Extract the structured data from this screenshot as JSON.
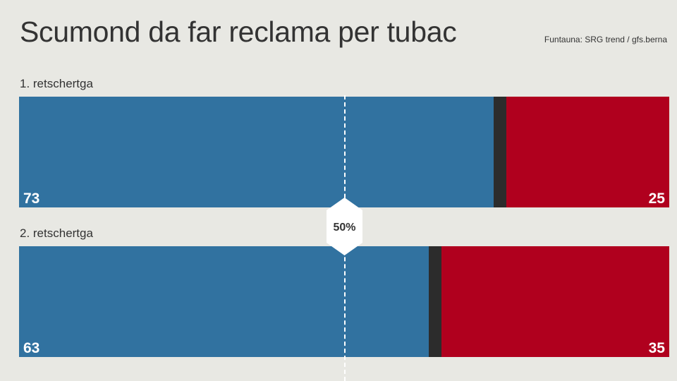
{
  "chart_data": {
    "type": "bar",
    "orientation": "horizontal-stacked",
    "title": "Scumond da far reclama per tubac",
    "source": "Funtauna: SRG trend / gfs.berna",
    "categories": [
      "1. retschertga",
      "2. retschertga"
    ],
    "series": [
      {
        "values": [
          73,
          63
        ],
        "color": "#3172a0"
      },
      {
        "values": [
          2,
          2
        ],
        "color": "#2c2c2c"
      },
      {
        "values": [
          25,
          35
        ],
        "color": "#b0001e"
      }
    ],
    "value_labels": {
      "yes": [
        "73",
        "63"
      ],
      "no": [
        "25",
        "35"
      ]
    },
    "reference_line": {
      "value": 50,
      "label": "50%"
    },
    "xlim": [
      0,
      100
    ],
    "grid": false,
    "legend": "none"
  }
}
